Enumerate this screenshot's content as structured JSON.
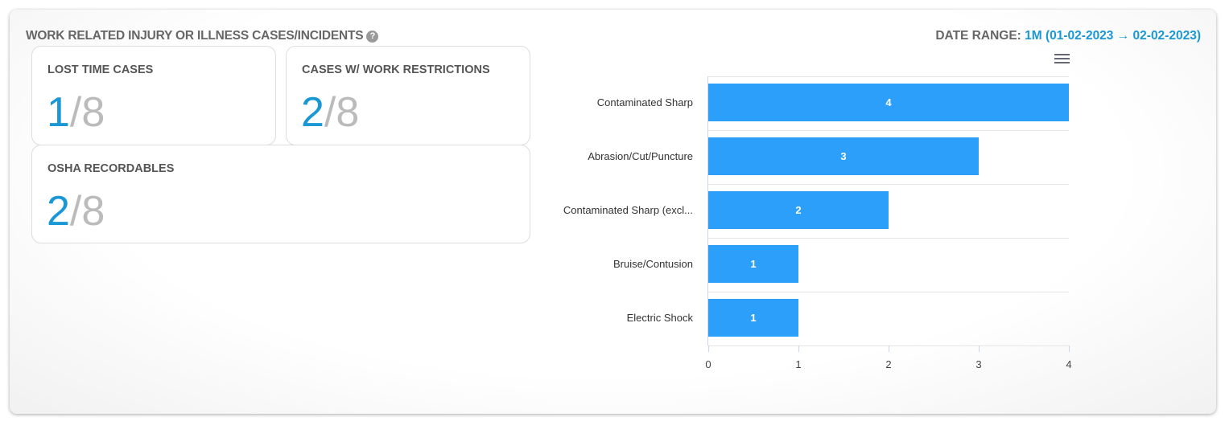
{
  "header": {
    "title": "WORK RELATED INJURY OR ILLNESS CASES/INCIDENTS",
    "help_icon": "question-circle-icon",
    "date_range_label": "DATE RANGE:",
    "date_range_value": "1M (01-02-2023 → 02-02-2023)"
  },
  "cards": [
    {
      "label": "LOST TIME CASES",
      "value": "1",
      "total": "/8"
    },
    {
      "label": "CASES W/ WORK RESTRICTIONS",
      "value": "2",
      "total": "/8"
    },
    {
      "label": "OSHA RECORDABLES",
      "value": "2",
      "total": "/8"
    }
  ],
  "colors": {
    "accent": "#1a97d5",
    "bar": "#2b9ffa"
  },
  "chart_data": {
    "type": "bar",
    "orientation": "horizontal",
    "categories": [
      "Contaminated Sharp",
      "Abrasion/Cut/Puncture",
      "Contaminated Sharp (excl...",
      "Bruise/Contusion",
      "Electric Shock"
    ],
    "values": [
      4,
      3,
      2,
      1,
      1
    ],
    "xlim": [
      0,
      4
    ],
    "xticks": [
      "0",
      "1",
      "2",
      "3",
      "4"
    ],
    "grid": true,
    "data_labels": true
  }
}
